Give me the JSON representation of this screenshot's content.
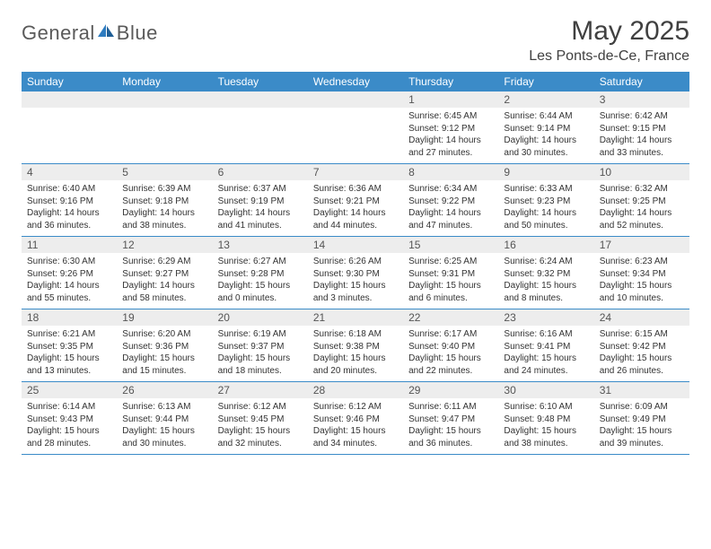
{
  "brand": {
    "part1": "General",
    "part2": "Blue"
  },
  "title": "May 2025",
  "location": "Les Ponts-de-Ce, France",
  "weekdays": [
    "Sunday",
    "Monday",
    "Tuesday",
    "Wednesday",
    "Thursday",
    "Friday",
    "Saturday"
  ],
  "colors": {
    "header_bg": "#3b8bc8",
    "daynum_bg": "#ededed",
    "border": "#3b8bc8",
    "text": "#333333",
    "title": "#404040",
    "logo_gray": "#5a5a5a",
    "logo_blue": "#2d7bc0"
  },
  "weeks": [
    [
      null,
      null,
      null,
      null,
      {
        "n": "1",
        "sunrise": "6:45 AM",
        "sunset": "9:12 PM",
        "dl1": "Daylight: 14 hours",
        "dl2": "and 27 minutes."
      },
      {
        "n": "2",
        "sunrise": "6:44 AM",
        "sunset": "9:14 PM",
        "dl1": "Daylight: 14 hours",
        "dl2": "and 30 minutes."
      },
      {
        "n": "3",
        "sunrise": "6:42 AM",
        "sunset": "9:15 PM",
        "dl1": "Daylight: 14 hours",
        "dl2": "and 33 minutes."
      }
    ],
    [
      {
        "n": "4",
        "sunrise": "6:40 AM",
        "sunset": "9:16 PM",
        "dl1": "Daylight: 14 hours",
        "dl2": "and 36 minutes."
      },
      {
        "n": "5",
        "sunrise": "6:39 AM",
        "sunset": "9:18 PM",
        "dl1": "Daylight: 14 hours",
        "dl2": "and 38 minutes."
      },
      {
        "n": "6",
        "sunrise": "6:37 AM",
        "sunset": "9:19 PM",
        "dl1": "Daylight: 14 hours",
        "dl2": "and 41 minutes."
      },
      {
        "n": "7",
        "sunrise": "6:36 AM",
        "sunset": "9:21 PM",
        "dl1": "Daylight: 14 hours",
        "dl2": "and 44 minutes."
      },
      {
        "n": "8",
        "sunrise": "6:34 AM",
        "sunset": "9:22 PM",
        "dl1": "Daylight: 14 hours",
        "dl2": "and 47 minutes."
      },
      {
        "n": "9",
        "sunrise": "6:33 AM",
        "sunset": "9:23 PM",
        "dl1": "Daylight: 14 hours",
        "dl2": "and 50 minutes."
      },
      {
        "n": "10",
        "sunrise": "6:32 AM",
        "sunset": "9:25 PM",
        "dl1": "Daylight: 14 hours",
        "dl2": "and 52 minutes."
      }
    ],
    [
      {
        "n": "11",
        "sunrise": "6:30 AM",
        "sunset": "9:26 PM",
        "dl1": "Daylight: 14 hours",
        "dl2": "and 55 minutes."
      },
      {
        "n": "12",
        "sunrise": "6:29 AM",
        "sunset": "9:27 PM",
        "dl1": "Daylight: 14 hours",
        "dl2": "and 58 minutes."
      },
      {
        "n": "13",
        "sunrise": "6:27 AM",
        "sunset": "9:28 PM",
        "dl1": "Daylight: 15 hours",
        "dl2": "and 0 minutes."
      },
      {
        "n": "14",
        "sunrise": "6:26 AM",
        "sunset": "9:30 PM",
        "dl1": "Daylight: 15 hours",
        "dl2": "and 3 minutes."
      },
      {
        "n": "15",
        "sunrise": "6:25 AM",
        "sunset": "9:31 PM",
        "dl1": "Daylight: 15 hours",
        "dl2": "and 6 minutes."
      },
      {
        "n": "16",
        "sunrise": "6:24 AM",
        "sunset": "9:32 PM",
        "dl1": "Daylight: 15 hours",
        "dl2": "and 8 minutes."
      },
      {
        "n": "17",
        "sunrise": "6:23 AM",
        "sunset": "9:34 PM",
        "dl1": "Daylight: 15 hours",
        "dl2": "and 10 minutes."
      }
    ],
    [
      {
        "n": "18",
        "sunrise": "6:21 AM",
        "sunset": "9:35 PM",
        "dl1": "Daylight: 15 hours",
        "dl2": "and 13 minutes."
      },
      {
        "n": "19",
        "sunrise": "6:20 AM",
        "sunset": "9:36 PM",
        "dl1": "Daylight: 15 hours",
        "dl2": "and 15 minutes."
      },
      {
        "n": "20",
        "sunrise": "6:19 AM",
        "sunset": "9:37 PM",
        "dl1": "Daylight: 15 hours",
        "dl2": "and 18 minutes."
      },
      {
        "n": "21",
        "sunrise": "6:18 AM",
        "sunset": "9:38 PM",
        "dl1": "Daylight: 15 hours",
        "dl2": "and 20 minutes."
      },
      {
        "n": "22",
        "sunrise": "6:17 AM",
        "sunset": "9:40 PM",
        "dl1": "Daylight: 15 hours",
        "dl2": "and 22 minutes."
      },
      {
        "n": "23",
        "sunrise": "6:16 AM",
        "sunset": "9:41 PM",
        "dl1": "Daylight: 15 hours",
        "dl2": "and 24 minutes."
      },
      {
        "n": "24",
        "sunrise": "6:15 AM",
        "sunset": "9:42 PM",
        "dl1": "Daylight: 15 hours",
        "dl2": "and 26 minutes."
      }
    ],
    [
      {
        "n": "25",
        "sunrise": "6:14 AM",
        "sunset": "9:43 PM",
        "dl1": "Daylight: 15 hours",
        "dl2": "and 28 minutes."
      },
      {
        "n": "26",
        "sunrise": "6:13 AM",
        "sunset": "9:44 PM",
        "dl1": "Daylight: 15 hours",
        "dl2": "and 30 minutes."
      },
      {
        "n": "27",
        "sunrise": "6:12 AM",
        "sunset": "9:45 PM",
        "dl1": "Daylight: 15 hours",
        "dl2": "and 32 minutes."
      },
      {
        "n": "28",
        "sunrise": "6:12 AM",
        "sunset": "9:46 PM",
        "dl1": "Daylight: 15 hours",
        "dl2": "and 34 minutes."
      },
      {
        "n": "29",
        "sunrise": "6:11 AM",
        "sunset": "9:47 PM",
        "dl1": "Daylight: 15 hours",
        "dl2": "and 36 minutes."
      },
      {
        "n": "30",
        "sunrise": "6:10 AM",
        "sunset": "9:48 PM",
        "dl1": "Daylight: 15 hours",
        "dl2": "and 38 minutes."
      },
      {
        "n": "31",
        "sunrise": "6:09 AM",
        "sunset": "9:49 PM",
        "dl1": "Daylight: 15 hours",
        "dl2": "and 39 minutes."
      }
    ]
  ]
}
